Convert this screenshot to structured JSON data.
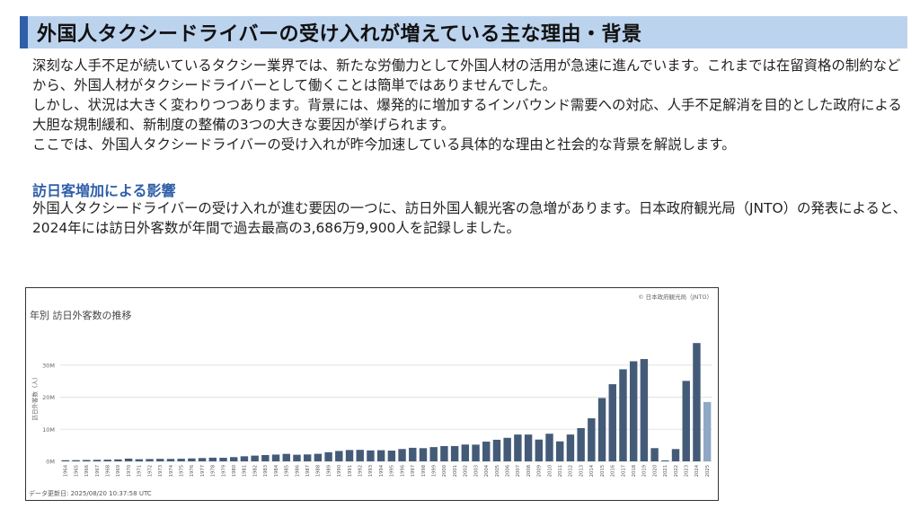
{
  "title": "外国人タクシードライバーの受け入れが増えている主な理由・背景",
  "intro": [
    "深刻な人手不足が続いているタクシー業界では、新たな労働力として外国人材の活用が急速に進んでいます。これまでは在留資格の制約などから、外国人材がタクシードライバーとして働くことは簡単ではありませんでした。",
    "しかし、状況は大きく変わりつつあります。背景には、爆発的に増加するインバウンド需要への対応、人手不足解消を目的とした政府による大胆な規制緩和、新制度の整備の3つの大きな要因が挙げられます。",
    "ここでは、外国人タクシードライバーの受け入れが昨今加速している具体的な理由と社会的な背景を解説します。"
  ],
  "section": {
    "heading": "訪日客増加による影響",
    "text": "外国人タクシードライバーの受け入れが進む要因の一つに、訪日外国人観光客の急増があります。日本政府観光局（JNTO）の発表によると、2024年には訪日外客数が年間で過去最高の3,686万9,900人を記録しました。"
  },
  "chart": {
    "source": "© 日本政府観光局（JNTO）",
    "updated": "データ更新日: 2025/08/20 10:37:58 UTC"
  },
  "chart_data": {
    "type": "bar",
    "title": "年別 訪日外客数の推移",
    "ylabel": "訪日外客数（人）",
    "ylim": [
      0,
      40000000
    ],
    "yticks": [
      "0M",
      "10M",
      "20M",
      "30M"
    ],
    "categories": [
      "1964",
      "1965",
      "1966",
      "1967",
      "1968",
      "1969",
      "1970",
      "1971",
      "1972",
      "1973",
      "1974",
      "1975",
      "1976",
      "1977",
      "1978",
      "1979",
      "1980",
      "1981",
      "1982",
      "1983",
      "1984",
      "1985",
      "1986",
      "1987",
      "1988",
      "1989",
      "1990",
      "1991",
      "1992",
      "1993",
      "1994",
      "1995",
      "1996",
      "1997",
      "1998",
      "1999",
      "2000",
      "2001",
      "2002",
      "2003",
      "2004",
      "2005",
      "2006",
      "2007",
      "2008",
      "2009",
      "2010",
      "2011",
      "2012",
      "2013",
      "2014",
      "2015",
      "2016",
      "2017",
      "2018",
      "2019",
      "2020",
      "2021",
      "2022",
      "2023",
      "2024",
      "2025"
    ],
    "values": [
      350000,
      370000,
      430000,
      480000,
      520000,
      610000,
      850000,
      660000,
      720000,
      780000,
      760000,
      810000,
      910000,
      1030000,
      1140000,
      1110000,
      1320000,
      1580000,
      1790000,
      1970000,
      2110000,
      2330000,
      2060000,
      2150000,
      2350000,
      2840000,
      3240000,
      3530000,
      3580000,
      3410000,
      3470000,
      3350000,
      3840000,
      4220000,
      4110000,
      4440000,
      4760000,
      4770000,
      5240000,
      5210000,
      6140000,
      6730000,
      7330000,
      8350000,
      8350000,
      6790000,
      8610000,
      6220000,
      8360000,
      10360000,
      13410000,
      19740000,
      24040000,
      28690000,
      31190000,
      31880000,
      4120000,
      250000,
      3830000,
      25070000,
      36870000,
      18500000
    ],
    "highlight_last": true,
    "colors": {
      "bar": "#445b78",
      "bar_partial": "#8fa8c4",
      "grid": "#e3e3e3"
    }
  }
}
